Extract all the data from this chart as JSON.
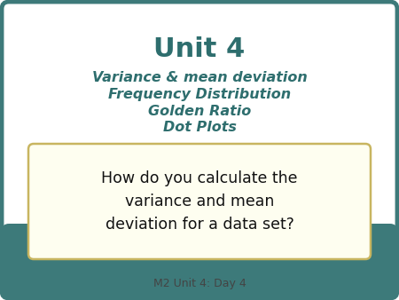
{
  "bg_color": "#ffffff",
  "outer_border_color": "#3d7a7a",
  "inner_bg_color": "#ffffff",
  "teal_band_color": "#3d7a7a",
  "title_main": "Unit 4",
  "title_main_color": "#2e6e6e",
  "title_main_fontsize": 22,
  "subtitle_lines": [
    "Variance & mean deviation",
    "Frequency Distribution",
    "Golden Ratio",
    "Dot Plots"
  ],
  "subtitle_color": "#2e6e6e",
  "subtitle_fontsize": 11.5,
  "box_border_color": "#c8b560",
  "box_bg_color": "#fefef0",
  "question_text": "How do you calculate the\nvariance and mean\ndeviation for a data set?",
  "question_color": "#111111",
  "question_fontsize": 12.5,
  "footer_text": "M2 Unit 4: Day 4",
  "footer_color": "#444444",
  "footer_fontsize": 9
}
